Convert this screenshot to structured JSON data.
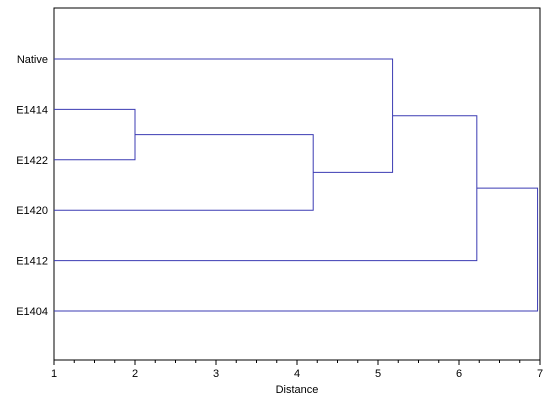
{
  "chart_data": {
    "type": "dendrogram",
    "title": "",
    "xlabel": "Distance",
    "ylabel": "",
    "xlim": [
      1,
      7
    ],
    "x_ticks": [
      1,
      2,
      3,
      4,
      5,
      6,
      7
    ],
    "leaves": [
      "Native",
      "E1414",
      "E1422",
      "E1420",
      "E1412",
      "E1404"
    ],
    "merges": [
      {
        "left": "E1414",
        "right": "E1422",
        "distance": 2.0
      },
      {
        "left": "E1414+E1422",
        "right": "E1420",
        "distance": 4.2
      },
      {
        "left": "Native",
        "right": "E1414+E1422+E1420",
        "distance": 5.18
      },
      {
        "left": "Native+E1414+E1422+E1420",
        "right": "E1412",
        "distance": 6.22
      },
      {
        "left": "Native+E1414+E1422+E1420+E1412",
        "right": "E1404",
        "distance": 6.97
      }
    ],
    "grid": false,
    "line_color": "#3b3bb3"
  }
}
